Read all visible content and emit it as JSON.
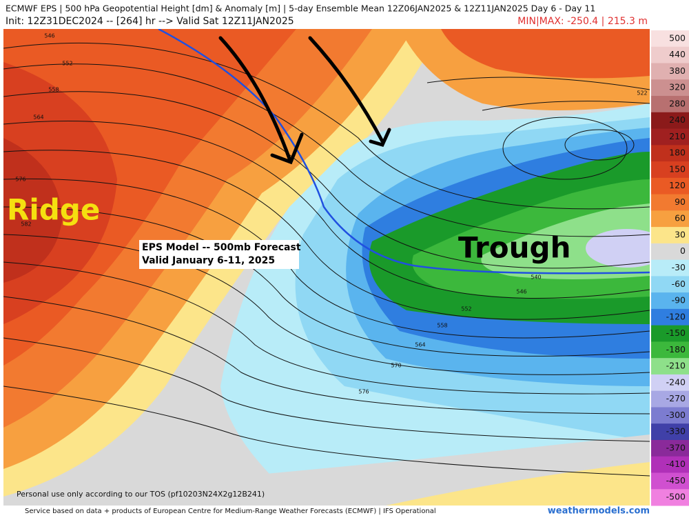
{
  "header": {
    "title": "ECMWF EPS | 500 hPa Geopotential Height [dm] & Anomaly [m] | 5-day Ensemble Mean 12Z06JAN2025 & 12Z11JAN2025  Day 6 - Day 11",
    "init": "Init: 12Z31DEC2024 -- [264] hr --> Valid Sat 12Z11JAN2025",
    "minmax": "MIN|MAX: -250.4 | 215.3 m"
  },
  "map": {
    "annotations": [
      "Ridge",
      "Trough"
    ],
    "info_box": [
      "EPS Model -- 500mb Forecast",
      "Valid January 6-11, 2025"
    ],
    "contour_labels": [
      "546",
      "552",
      "558",
      "564",
      "576",
      "582",
      "522",
      "540",
      "546",
      "552",
      "558",
      "564",
      "570",
      "576"
    ],
    "tos": "Personal use only according to our TOS (pf10203N24X2g12B241)"
  },
  "colorbar": {
    "labels": [
      500,
      440,
      380,
      320,
      280,
      240,
      210,
      180,
      150,
      120,
      90,
      60,
      30,
      0,
      -30,
      -60,
      -90,
      -120,
      -150,
      -180,
      -210,
      -240,
      -270,
      -300,
      -330,
      -370,
      -410,
      -450,
      -500
    ],
    "colors": [
      "#f8e0e0",
      "#efcccc",
      "#e0b0b0",
      "#cc9090",
      "#b87070",
      "#8b1a1a",
      "#a02020",
      "#c0301c",
      "#d84020",
      "#ea5a24",
      "#f27a30",
      "#f7a040",
      "#fce58a",
      "#d9d9d9",
      "#b8ecf8",
      "#90d8f4",
      "#5ab4ee",
      "#2f7ee0",
      "#1a9a2a",
      "#3cb83c",
      "#8ee08a",
      "#d0d0f4",
      "#a8a8e4",
      "#7c7cd0",
      "#4040a8",
      "#8a2a9a",
      "#b030b8",
      "#d050d0",
      "#f080e0"
    ]
  },
  "footer": {
    "source": "Service based on data + products of European Centre for Medium-Range Weather Forecasts (ECMWF) | IFS Operational",
    "site": "weathermodels.com"
  }
}
